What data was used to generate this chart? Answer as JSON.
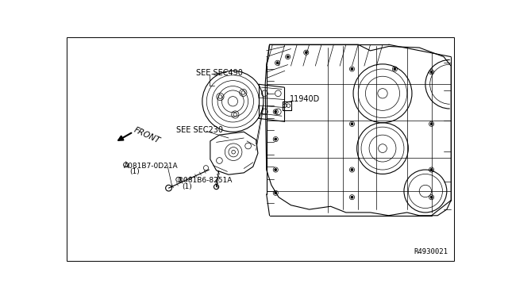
{
  "bg_color": "#ffffff",
  "diagram_ref": "R4930021",
  "border": [
    3,
    3,
    634,
    366
  ],
  "labels": {
    "see_sec490": "SEE SEC490",
    "see_sec230": "SEE SEC230",
    "part_11940D": "11940D",
    "front": "FRONT",
    "part_A_line1": "À081B7-0D21A",
    "part_A_line2": "(1)",
    "part_B_line1": "®081B6-8251A",
    "part_B_line2": "(1)"
  },
  "lw_thin": 0.5,
  "lw_med": 0.8,
  "lw_thick": 1.2,
  "font_tiny": 6.5,
  "font_small": 7.5
}
